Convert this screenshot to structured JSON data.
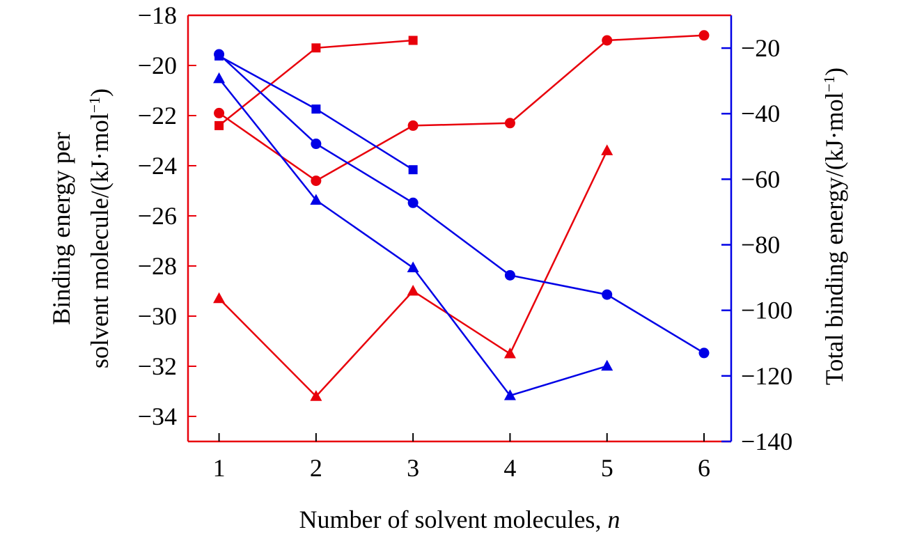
{
  "chart_data": {
    "type": "line",
    "x": [
      1,
      2,
      3,
      4,
      5,
      6
    ],
    "xlabel": "Number of solvent molecules, ",
    "xlabel_var": "n",
    "xlim": [
      0.68,
      6.28
    ],
    "xticks": [
      1,
      2,
      3,
      4,
      5,
      6
    ],
    "left_axis": {
      "label_line1": "Binding energy per",
      "label_line2": "solvent molecule/(kJ·mol",
      "label_sup": "−1",
      "label_close": ")",
      "ylim": [
        -35,
        -18
      ],
      "ticks": [
        -18,
        -20,
        -22,
        -24,
        -26,
        -28,
        -30,
        -32,
        -34
      ],
      "color": "#e8000b"
    },
    "right_axis": {
      "label": "Total binding energy/(kJ·mol",
      "label_sup": "−1",
      "label_close": ")",
      "ylim": [
        -140,
        -10
      ],
      "ticks": [
        -20,
        -40,
        -60,
        -80,
        -100,
        -120,
        -140
      ],
      "color": "#0000e6"
    },
    "grid": false,
    "series": [
      {
        "axis": "left",
        "marker": "square",
        "color": "#e8000b",
        "x": [
          1,
          2,
          3
        ],
        "values": [
          -22.4,
          -19.3,
          -19.0
        ]
      },
      {
        "axis": "left",
        "marker": "circle",
        "color": "#e8000b",
        "x": [
          1,
          2,
          3,
          4,
          5,
          6
        ],
        "values": [
          -21.9,
          -24.6,
          -22.4,
          -22.3,
          -19.0,
          -18.8
        ]
      },
      {
        "axis": "left",
        "marker": "triangle",
        "color": "#e8000b",
        "x": [
          1,
          2,
          3,
          4,
          5
        ],
        "values": [
          -29.3,
          -33.2,
          -29.0,
          -31.5,
          -23.4
        ]
      },
      {
        "axis": "right",
        "marker": "square",
        "color": "#0000e6",
        "x": [
          1,
          2,
          3
        ],
        "values": [
          -22.4,
          -38.6,
          -57.1
        ]
      },
      {
        "axis": "right",
        "marker": "circle",
        "color": "#0000e6",
        "x": [
          1,
          2,
          3,
          4,
          5,
          6
        ],
        "values": [
          -21.9,
          -49.2,
          -67.2,
          -89.3,
          -95.2,
          -113.0
        ]
      },
      {
        "axis": "right",
        "marker": "triangle",
        "color": "#0000e6",
        "x": [
          1,
          2,
          3,
          4,
          5
        ],
        "values": [
          -29.3,
          -66.4,
          -87.0,
          -126.0,
          -117.0
        ]
      }
    ]
  }
}
